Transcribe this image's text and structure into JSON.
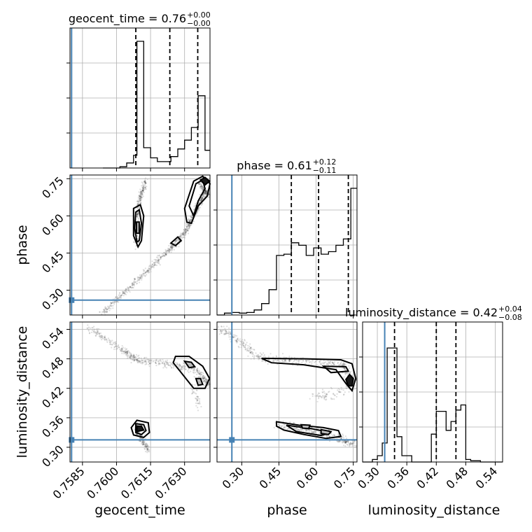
{
  "chart_data": {
    "type": "corner",
    "parameters": [
      "geocent_time",
      "phase",
      "luminosity_distance"
    ],
    "axis_labels": {
      "geocent_time": "geocent_time",
      "phase": "phase",
      "luminosity_distance": "luminosity_distance"
    },
    "titles": [
      {
        "param": "geocent_time",
        "prefix": "geocent_time = ",
        "median": "0.76",
        "plus": "+0.00",
        "minus": "−0.00"
      },
      {
        "param": "phase",
        "prefix": "phase = ",
        "median": "0.61",
        "plus": "+0.12",
        "minus": "−0.11"
      },
      {
        "param": "luminosity_distance",
        "prefix": "luminosity_distance = ",
        "median": "0.42",
        "plus": "+0.04",
        "minus": "−0.08"
      }
    ],
    "ranges": {
      "geocent_time": [
        0.75795,
        0.76412
      ],
      "phase": [
        0.2,
        0.765
      ],
      "luminosity_distance": [
        0.27,
        0.555
      ]
    },
    "ticks": {
      "geocent_time": {
        "values": [
          0.7585,
          0.76,
          0.7615,
          0.763
        ],
        "labels": [
          "0.7585",
          "0.7600",
          "0.7615",
          "0.7630"
        ]
      },
      "phase": {
        "values": [
          0.3,
          0.45,
          0.6,
          0.75
        ],
        "labels": [
          "0.30",
          "0.45",
          "0.60",
          "0.75"
        ]
      },
      "luminosity_distance": {
        "values": [
          0.3,
          0.36,
          0.42,
          0.48,
          0.54
        ],
        "labels": [
          "0.30",
          "0.36",
          "0.42",
          "0.48",
          "0.54"
        ]
      }
    },
    "truths": {
      "geocent_time": 0.75802,
      "phase": 0.26,
      "luminosity_distance": 0.315
    },
    "quantiles": {
      "geocent_time": [
        0.76085,
        0.76235,
        0.76358
      ],
      "phase": [
        0.5,
        0.61,
        0.73
      ],
      "luminosity_distance": [
        0.335,
        0.42,
        0.46
      ]
    },
    "histograms": {
      "geocent_time": {
        "edges": [
          0.7594,
          0.75955,
          0.7597,
          0.75985,
          0.76,
          0.76015,
          0.7603,
          0.76045,
          0.7606,
          0.76075,
          0.7609,
          0.76105,
          0.7612,
          0.76135,
          0.7615,
          0.76165,
          0.7618,
          0.76195,
          0.7621,
          0.76225,
          0.7624,
          0.76255,
          0.7627,
          0.76285,
          0.763,
          0.76315,
          0.7633,
          0.76345,
          0.7636,
          0.76375,
          0.7639,
          0.76412
        ],
        "counts": [
          0,
          0,
          0,
          0,
          0,
          0.01,
          0.01,
          0.04,
          0.04,
          0.1,
          1.0,
          1.0,
          0.16,
          0.16,
          0.08,
          0.08,
          0.05,
          0.05,
          0.05,
          0.05,
          0.09,
          0.09,
          0.15,
          0.15,
          0.22,
          0.22,
          0.32,
          0.32,
          0.57,
          0.57,
          0.14
        ]
      },
      "phase": {
        "edges": [
          0.2,
          0.23,
          0.26,
          0.29,
          0.32,
          0.35,
          0.38,
          0.41,
          0.44,
          0.47,
          0.5,
          0.53,
          0.56,
          0.59,
          0.62,
          0.65,
          0.68,
          0.71,
          0.74,
          0.765
        ],
        "counts": [
          0.0,
          0.015,
          0.02,
          0.015,
          0.02,
          0.04,
          0.09,
          0.2,
          0.47,
          0.48,
          0.57,
          0.55,
          0.47,
          0.53,
          0.48,
          0.5,
          0.55,
          0.6,
          1.0
        ]
      },
      "luminosity_distance": {
        "edges": [
          0.27,
          0.28,
          0.29,
          0.3,
          0.31,
          0.32,
          0.33,
          0.34,
          0.35,
          0.36,
          0.37,
          0.38,
          0.39,
          0.4,
          0.41,
          0.42,
          0.43,
          0.44,
          0.45,
          0.46,
          0.47,
          0.48,
          0.49,
          0.5,
          0.51,
          0.52,
          0.53,
          0.54,
          0.555
        ],
        "counts": [
          0,
          0,
          0.02,
          0.05,
          0.15,
          0.9,
          0.9,
          0.2,
          0.05,
          0.05,
          0,
          0,
          0,
          0,
          0.22,
          0.4,
          0.4,
          0.25,
          0.32,
          0.41,
          0.45,
          0.02,
          0.01,
          0.01,
          0,
          0,
          0,
          0
        ]
      }
    },
    "grid": true
  }
}
